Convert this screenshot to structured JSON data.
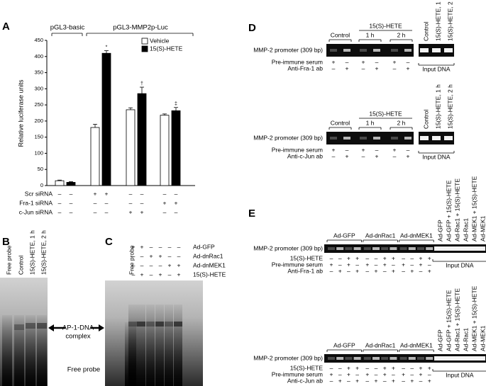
{
  "chart_data": {
    "type": "bar",
    "panel": "A",
    "ylabel": "Relative luciferase units",
    "ylim": [
      0,
      450
    ],
    "yticks": [
      0,
      50,
      100,
      150,
      200,
      250,
      300,
      350,
      400,
      450
    ],
    "group_labels": [
      "pGL3-basic",
      "pGL3-MMP2p-Luc"
    ],
    "series": [
      {
        "name": "Vehicle",
        "color": "#ffffff",
        "values": [
          15,
          180,
          235,
          218
        ],
        "errors": [
          2,
          10,
          6,
          4
        ]
      },
      {
        "name": "15(S)-HETE",
        "color": "#000000",
        "values": [
          10,
          410,
          285,
          232
        ],
        "errors": [
          2,
          8,
          20,
          10
        ]
      }
    ],
    "markers": [
      null,
      "*",
      "†",
      "‡"
    ],
    "treatments": [
      {
        "label": "Scr siRNA",
        "signs": [
          "–",
          "–",
          "+",
          "+",
          "–",
          "–",
          "–",
          "–"
        ]
      },
      {
        "label": "Fra-1 siRNA",
        "signs": [
          "–",
          "–",
          "–",
          "–",
          "–",
          "–",
          "+",
          "+"
        ]
      },
      {
        "label": "c-Jun siRNA",
        "signs": [
          "–",
          "–",
          "–",
          "–",
          "+",
          "+",
          "–",
          "–"
        ]
      }
    ]
  },
  "panel_b": {
    "letter": "B",
    "lanes": [
      "Free probe",
      "Control",
      "15(S)-HETE, 1 h",
      "15(S)-HETE, 2 h"
    ],
    "complex_label": [
      "AP-1-DNA",
      "complex"
    ],
    "free_probe_label": "Free probe"
  },
  "panel_c": {
    "letter": "C",
    "lane_label": "Free probe",
    "treatments": [
      {
        "label": "Ad-GFP",
        "signs": [
          "+",
          "+",
          "–",
          "–",
          "–",
          "–"
        ]
      },
      {
        "label": "Ad-dnRac1",
        "signs": [
          "–",
          "–",
          "+",
          "+",
          "–",
          "–"
        ]
      },
      {
        "label": "Ad-dnMEK1",
        "signs": [
          "–",
          "–",
          "–",
          "–",
          "+",
          "+"
        ]
      },
      {
        "label": "15(S)-HETE",
        "signs": [
          "–",
          "+",
          "–",
          "+",
          "–",
          "+"
        ]
      }
    ]
  },
  "panel_d": {
    "letter": "D",
    "blots": [
      {
        "header": "15(S)-HETE",
        "groups": [
          "Control",
          "1 h",
          "2 h"
        ],
        "lanes": [
          "Control",
          "15(S)-HETE, 1 h",
          "15(S)-HETE, 2 h"
        ],
        "band_label": "MMP-2 promoter (309 bp)",
        "input_label": "Input DNA",
        "rows": [
          {
            "label": "Pre-immune serum",
            "signs": [
              "+",
              "–",
              "+",
              "–",
              "+",
              "–"
            ]
          },
          {
            "label": "Anti-Fra-1 ab",
            "signs": [
              "–",
              "+",
              "–",
              "+",
              "–",
              "+"
            ]
          }
        ]
      },
      {
        "header": "15(S)-HETE",
        "groups": [
          "Control",
          "1 h",
          "2 h"
        ],
        "lanes": [
          "Control",
          "15(S)-HETE, 1 h",
          "15(S)-HETE, 2 h"
        ],
        "band_label": "MMP-2 promoter (309 bp)",
        "input_label": "Input DNA",
        "rows": [
          {
            "label": "Pre-immune serum",
            "signs": [
              "+",
              "–",
              "+",
              "–",
              "+",
              "–"
            ]
          },
          {
            "label": "Anti-c-Jun ab",
            "signs": [
              "–",
              "+",
              "–",
              "+",
              "–",
              "+"
            ]
          }
        ]
      }
    ]
  },
  "panel_e": {
    "letter": "E",
    "blots": [
      {
        "groups": [
          "Ad-GFP",
          "Ad-dnRac1",
          "Ad-dnMEK1"
        ],
        "lanes": [
          "Ad-GFP",
          "Ad-GFP + 15(S)-HETE",
          "Ad-Rac1 + 15(S)-HETE",
          "Ad-Rac1",
          "Ad-MEK1 + 15(S)-HETE",
          "Ad-MEK1"
        ],
        "band_label": "MMP-2 promoter (309 bp)",
        "input_label": "Input DNA",
        "rows": [
          {
            "label": "15(S)-HETE",
            "signs": [
              "–",
              "–",
              "+",
              "+",
              "–",
              "–",
              "+",
              "+",
              "–",
              "–",
              "+",
              "+"
            ]
          },
          {
            "label": "Pre-immune serum",
            "signs": [
              "+",
              "–",
              "+",
              "–",
              "+",
              "–",
              "+",
              "–",
              "+",
              "–",
              "+",
              "–"
            ]
          },
          {
            "label": "Anti-Fra-1 ab",
            "signs": [
              "–",
              "+",
              "–",
              "+",
              "–",
              "+",
              "–",
              "+",
              "–",
              "+",
              "–",
              "+"
            ]
          }
        ]
      },
      {
        "groups": [
          "Ad-GFP",
          "Ad-dnRac1",
          "Ad-dnMEK1"
        ],
        "lanes": [
          "Ad-GFP",
          "Ad-GFP + 15(S)-HETE",
          "Ad-Rac1 + 15(S)-HETE",
          "Ad-Rac1",
          "Ad-MEK1 + 15(S)-HETE",
          "Ad-MEK1"
        ],
        "band_label": "MMP-2 promoter (309 bp)",
        "input_label": "Input DNA",
        "rows": [
          {
            "label": "15(S)-HETE",
            "signs": [
              "–",
              "–",
              "+",
              "+",
              "–",
              "–",
              "+",
              "+",
              "–",
              "–",
              "+",
              "+"
            ]
          },
          {
            "label": "Pre-immune serum",
            "signs": [
              "+",
              "–",
              "+",
              "–",
              "+",
              "–",
              "+",
              "–",
              "+",
              "–",
              "+",
              "–"
            ]
          },
          {
            "label": "Anti-c-Jun ab",
            "signs": [
              "–",
              "+",
              "–",
              "+",
              "–",
              "+",
              "–",
              "+",
              "–",
              "+",
              "–",
              "+"
            ]
          }
        ]
      }
    ]
  }
}
